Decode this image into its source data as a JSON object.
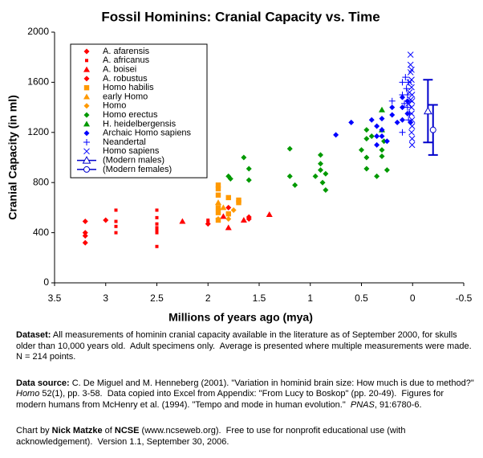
{
  "chart_data": {
    "type": "scatter",
    "title": "Fossil Hominins: Cranial Capacity vs. Time",
    "x_label": "Millions of years ago (mya)",
    "y_label": "Cranial Capacity (in ml)",
    "xlim": [
      3.5,
      -0.5
    ],
    "xticks": [
      3.5,
      3,
      2.5,
      2,
      1.5,
      1,
      0.5,
      0,
      -0.5
    ],
    "ylim": [
      0,
      2000
    ],
    "yticks": [
      0,
      400,
      800,
      1200,
      1600,
      2000
    ],
    "grid": false,
    "legend": "upper left",
    "series": [
      {
        "name": "A. afarensis",
        "color": "#ff0000",
        "marker": "diamond",
        "x": [
          3.2,
          3.2,
          3.2,
          3.2,
          3.0
        ],
        "values": [
          490,
          400,
          375,
          320,
          500
        ]
      },
      {
        "name": "A. africanus",
        "color": "#ff0000",
        "marker": "small-square",
        "x": [
          2.9,
          2.9,
          2.9,
          2.9,
          2.5,
          2.5,
          2.5,
          2.5,
          2.5,
          2.5,
          2.5,
          2.0,
          2.0
        ],
        "values": [
          580,
          490,
          450,
          400,
          580,
          520,
          470,
          440,
          420,
          400,
          290,
          500,
          485
        ]
      },
      {
        "name": "A. boisei",
        "color": "#ff0000",
        "marker": "triangle",
        "x": [
          2.25,
          1.85,
          1.8,
          1.65,
          1.4
        ],
        "values": [
          490,
          530,
          440,
          500,
          545
        ]
      },
      {
        "name": "A. robustus",
        "color": "#ff0000",
        "marker": "diamond",
        "x": [
          2.0,
          1.8,
          1.6,
          1.6
        ],
        "values": [
          470,
          600,
          525,
          510
        ]
      },
      {
        "name": "Homo habilis",
        "color": "#ff9900",
        "marker": "square",
        "x": [
          1.9,
          1.9,
          1.9,
          1.9,
          1.9,
          1.8,
          1.8,
          1.7,
          1.7,
          1.9
        ],
        "values": [
          780,
          750,
          700,
          600,
          560,
          680,
          550,
          660,
          640,
          500
        ]
      },
      {
        "name": "early Homo",
        "color": "#ff9900",
        "marker": "triangle",
        "x": [
          1.9,
          1.85
        ],
        "values": [
          640,
          600
        ]
      },
      {
        "name": "Homo",
        "color": "#ff9900",
        "marker": "diamond",
        "x": [
          1.9,
          1.8,
          1.75
        ],
        "values": [
          510,
          510,
          580
        ]
      },
      {
        "name": "Homo erectus",
        "color": "#009900",
        "marker": "diamond",
        "x": [
          1.8,
          1.78,
          1.65,
          1.6,
          1.6,
          1.2,
          1.2,
          1.15,
          0.95,
          0.9,
          0.9,
          0.9,
          0.88,
          0.85,
          0.85,
          0.5,
          0.45,
          0.45,
          0.45,
          0.45,
          0.4,
          0.35,
          0.3,
          0.25,
          0.28,
          0.3
        ],
        "values": [
          850,
          830,
          1000,
          910,
          820,
          1070,
          850,
          780,
          850,
          1020,
          950,
          900,
          800,
          870,
          740,
          1060,
          1220,
          1150,
          1000,
          910,
          1170,
          850,
          1060,
          900,
          1130,
          1010
        ]
      },
      {
        "name": "H. heidelbergensis",
        "color": "#009900",
        "marker": "triangle",
        "x": [
          0.3,
          0.3
        ],
        "values": [
          1380,
          1220
        ]
      },
      {
        "name": "Archaic Homo sapiens",
        "color": "#0000ff",
        "marker": "diamond",
        "x": [
          0.75,
          0.6,
          0.4,
          0.35,
          0.35,
          0.35,
          0.3,
          0.3,
          0.3,
          0.25,
          0.2,
          0.2,
          0.15,
          0.1,
          0.1,
          0.1,
          0.05,
          0.05,
          0.02
        ],
        "values": [
          1180,
          1280,
          1300,
          1250,
          1170,
          1100,
          1310,
          1220,
          1170,
          1130,
          1400,
          1340,
          1280,
          1300,
          1480,
          1400,
          1350,
          1450,
          1280
        ]
      },
      {
        "name": "Neandertal",
        "color": "#0000ff",
        "marker": "plus",
        "x": [
          0.2,
          0.1,
          0.1,
          0.07,
          0.06,
          0.05,
          0.05,
          0.04,
          0.04,
          0.1,
          0.08,
          0.03
        ],
        "values": [
          1450,
          1600,
          1500,
          1640,
          1550,
          1400,
          1500,
          1600,
          1300,
          1200,
          1430,
          1350
        ]
      },
      {
        "name": "Homo sapiens",
        "color": "#0000ff",
        "marker": "cross",
        "x": [
          0.02,
          0.02,
          0.01,
          0.01,
          0.01,
          0.005,
          0.005,
          0.01,
          0.01,
          0.005,
          0.005,
          0.01,
          0.005,
          0.005,
          0.02,
          0.03,
          0.03,
          0.02,
          0.04
        ],
        "values": [
          1820,
          1740,
          1700,
          1620,
          1560,
          1500,
          1450,
          1400,
          1350,
          1300,
          1250,
          1200,
          1150,
          1100,
          1680,
          1600,
          1520,
          1460,
          1430
        ]
      },
      {
        "name": "(Modern males)",
        "color": "#0000cc",
        "marker": "triangle-open",
        "x": [
          -0.15
        ],
        "values": [
          1370
        ],
        "errors": [
          250
        ]
      },
      {
        "name": "(Modern females)",
        "color": "#0000cc",
        "marker": "circle-open",
        "x": [
          -0.2
        ],
        "values": [
          1220
        ],
        "errors": [
          200
        ]
      }
    ]
  },
  "notes": [
    [
      {
        "text": "Dataset:",
        "style": "bold"
      },
      {
        "text": " All measurements of hominin cranial capacity available in the literature as of September 2000, for skulls older than 10,000 years old.  Adult specimens only.  Average is presented where multiple measurements were made. N = 214 points."
      }
    ],
    [
      {
        "text": "Data source:",
        "style": "bold"
      },
      {
        "text": " C. De Miguel and M. Henneberg (2001). \"Variation in hominid brain size: How much is due to method?\"  "
      },
      {
        "text": "Homo",
        "style": "italic"
      },
      {
        "text": " 52(1), pp. 3-58.  Data copied into Excel from Appendix: \"From Lucy to Boskop\" (pp. 20-49).  Figures for modern humans from McHenry et al. (1994). \"Tempo and mode in human evolution.\"  "
      },
      {
        "text": "PNAS",
        "style": "italic"
      },
      {
        "text": ", 91:6780-6."
      }
    ],
    [
      {
        "text": "Chart by "
      },
      {
        "text": "Nick Matzke",
        "style": "bold"
      },
      {
        "text": " of "
      },
      {
        "text": "NCSE",
        "style": "bold"
      },
      {
        "text": " (www.ncseweb.org).  Free to use for nonprofit educational use (with acknowledgement).  Version 1.1, September 30, 2006."
      }
    ]
  ]
}
